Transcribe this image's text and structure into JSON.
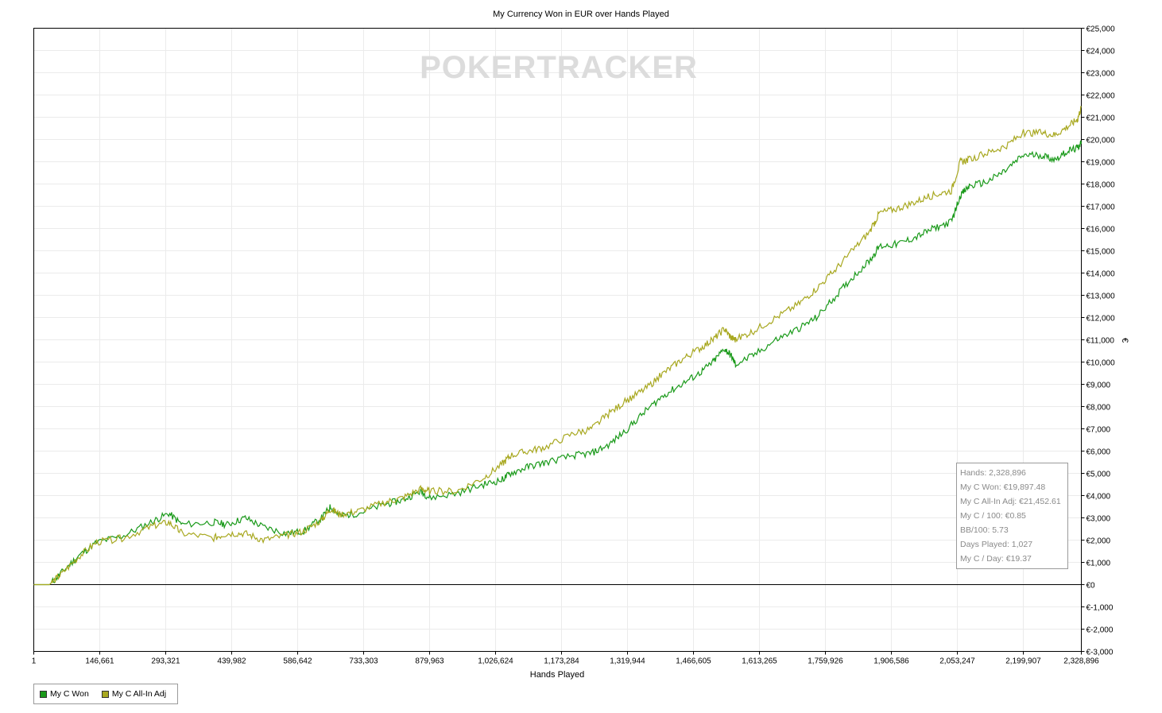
{
  "chart_data": {
    "type": "line",
    "title": "My Currency Won in EUR over Hands Played",
    "xlabel": "Hands Played",
    "ylabel": "€",
    "watermark": "POKERTRACKER",
    "xlim": [
      1,
      2328896
    ],
    "ylim": [
      -3000,
      25000
    ],
    "x_tick_labels": [
      "1",
      "146,661",
      "293,321",
      "439,982",
      "586,642",
      "733,303",
      "879,963",
      "1,026,624",
      "1,173,284",
      "1,319,944",
      "1,466,605",
      "1,613,265",
      "1,759,926",
      "1,906,586",
      "2,053,247",
      "2,199,907",
      "2,328,896"
    ],
    "x_ticks": [
      1,
      146661,
      293321,
      439982,
      586642,
      733303,
      879963,
      1026624,
      1173284,
      1319944,
      1466605,
      1613265,
      1759926,
      1906586,
      2053247,
      2199907,
      2328896
    ],
    "y_ticks": [
      -3000,
      -2000,
      -1000,
      0,
      1000,
      2000,
      3000,
      4000,
      5000,
      6000,
      7000,
      8000,
      9000,
      10000,
      11000,
      12000,
      13000,
      14000,
      15000,
      16000,
      17000,
      18000,
      19000,
      20000,
      21000,
      22000,
      23000,
      24000,
      25000
    ],
    "y_tick_labels": [
      "€-3,000",
      "€-2,000",
      "€-1,000",
      "€0",
      "€1,000",
      "€2,000",
      "€3,000",
      "€4,000",
      "€5,000",
      "€6,000",
      "€7,000",
      "€8,000",
      "€9,000",
      "€10,000",
      "€11,000",
      "€12,000",
      "€13,000",
      "€14,000",
      "€15,000",
      "€16,000",
      "€17,000",
      "€18,000",
      "€19,000",
      "€20,000",
      "€21,000",
      "€22,000",
      "€23,000",
      "€24,000",
      "€25,000"
    ],
    "grid": true,
    "legend_position": "bottom-left",
    "series": [
      {
        "name": "My C Won",
        "color": "#1a9a1a",
        "points": [
          [
            1,
            0
          ],
          [
            35000,
            0
          ],
          [
            60000,
            500
          ],
          [
            100000,
            1300
          ],
          [
            140000,
            1900
          ],
          [
            200000,
            2200
          ],
          [
            260000,
            2800
          ],
          [
            300000,
            3200
          ],
          [
            330000,
            2700
          ],
          [
            400000,
            2800
          ],
          [
            430000,
            2700
          ],
          [
            470000,
            3000
          ],
          [
            510000,
            2600
          ],
          [
            560000,
            2300
          ],
          [
            600000,
            2400
          ],
          [
            640000,
            3000
          ],
          [
            660000,
            3500
          ],
          [
            680000,
            3100
          ],
          [
            720000,
            3200
          ],
          [
            780000,
            3600
          ],
          [
            820000,
            3800
          ],
          [
            860000,
            4200
          ],
          [
            880000,
            3900
          ],
          [
            940000,
            4100
          ],
          [
            1000000,
            4500
          ],
          [
            1040000,
            4700
          ],
          [
            1060000,
            5000
          ],
          [
            1100000,
            5300
          ],
          [
            1140000,
            5500
          ],
          [
            1200000,
            5800
          ],
          [
            1240000,
            5900
          ],
          [
            1280000,
            6300
          ],
          [
            1320000,
            7000
          ],
          [
            1360000,
            7800
          ],
          [
            1400000,
            8500
          ],
          [
            1440000,
            9000
          ],
          [
            1480000,
            9500
          ],
          [
            1510000,
            10000
          ],
          [
            1535000,
            10600
          ],
          [
            1550000,
            10300
          ],
          [
            1560000,
            9900
          ],
          [
            1600000,
            10300
          ],
          [
            1650000,
            11000
          ],
          [
            1700000,
            11500
          ],
          [
            1740000,
            12000
          ],
          [
            1780000,
            12900
          ],
          [
            1820000,
            13800
          ],
          [
            1860000,
            14600
          ],
          [
            1880000,
            15200
          ],
          [
            1920000,
            15300
          ],
          [
            1960000,
            15600
          ],
          [
            2000000,
            16000
          ],
          [
            2040000,
            16300
          ],
          [
            2060000,
            17500
          ],
          [
            2080000,
            17900
          ],
          [
            2120000,
            18100
          ],
          [
            2160000,
            18600
          ],
          [
            2200000,
            19300
          ],
          [
            2240000,
            19300
          ],
          [
            2270000,
            19100
          ],
          [
            2300000,
            19500
          ],
          [
            2320000,
            19600
          ],
          [
            2328896,
            19897
          ]
        ]
      },
      {
        "name": "My C All-In Adj",
        "color": "#a8a820",
        "points": [
          [
            1,
            0
          ],
          [
            35000,
            0
          ],
          [
            60000,
            450
          ],
          [
            100000,
            1250
          ],
          [
            140000,
            1900
          ],
          [
            200000,
            2100
          ],
          [
            260000,
            2600
          ],
          [
            300000,
            2800
          ],
          [
            330000,
            2300
          ],
          [
            400000,
            2100
          ],
          [
            430000,
            2300
          ],
          [
            470000,
            2300
          ],
          [
            510000,
            2000
          ],
          [
            560000,
            2200
          ],
          [
            600000,
            2400
          ],
          [
            640000,
            2900
          ],
          [
            660000,
            3400
          ],
          [
            680000,
            3150
          ],
          [
            720000,
            3300
          ],
          [
            780000,
            3700
          ],
          [
            820000,
            3900
          ],
          [
            860000,
            4300
          ],
          [
            880000,
            4200
          ],
          [
            940000,
            4200
          ],
          [
            1000000,
            4800
          ],
          [
            1040000,
            5400
          ],
          [
            1060000,
            5800
          ],
          [
            1100000,
            6000
          ],
          [
            1140000,
            6200
          ],
          [
            1200000,
            6800
          ],
          [
            1240000,
            7000
          ],
          [
            1280000,
            7700
          ],
          [
            1320000,
            8300
          ],
          [
            1360000,
            8800
          ],
          [
            1400000,
            9500
          ],
          [
            1440000,
            10100
          ],
          [
            1480000,
            10600
          ],
          [
            1510000,
            11000
          ],
          [
            1535000,
            11500
          ],
          [
            1550000,
            11100
          ],
          [
            1560000,
            11000
          ],
          [
            1600000,
            11400
          ],
          [
            1650000,
            12000
          ],
          [
            1700000,
            12600
          ],
          [
            1740000,
            13300
          ],
          [
            1780000,
            14100
          ],
          [
            1820000,
            15000
          ],
          [
            1860000,
            15900
          ],
          [
            1880000,
            16700
          ],
          [
            1920000,
            16900
          ],
          [
            1960000,
            17200
          ],
          [
            2000000,
            17500
          ],
          [
            2040000,
            17700
          ],
          [
            2060000,
            19000
          ],
          [
            2080000,
            19100
          ],
          [
            2120000,
            19400
          ],
          [
            2160000,
            19700
          ],
          [
            2200000,
            20300
          ],
          [
            2240000,
            20300
          ],
          [
            2270000,
            20200
          ],
          [
            2300000,
            20600
          ],
          [
            2320000,
            20900
          ],
          [
            2328896,
            21452
          ]
        ]
      }
    ]
  },
  "stats": {
    "hands": "Hands: 2,328,896",
    "won": "My C Won: €19,897.48",
    "allin": "My C All-In Adj: €21,452.61",
    "per100": "My C / 100: €0.85",
    "bb100": "BB/100: 5.73",
    "days": "Days Played: 1,027",
    "perday": "My C / Day: €19.37"
  },
  "legend": {
    "won_label": "My C Won",
    "won_color": "#1a9a1a",
    "allin_label": "My C All-In Adj",
    "allin_color": "#a8a820"
  }
}
